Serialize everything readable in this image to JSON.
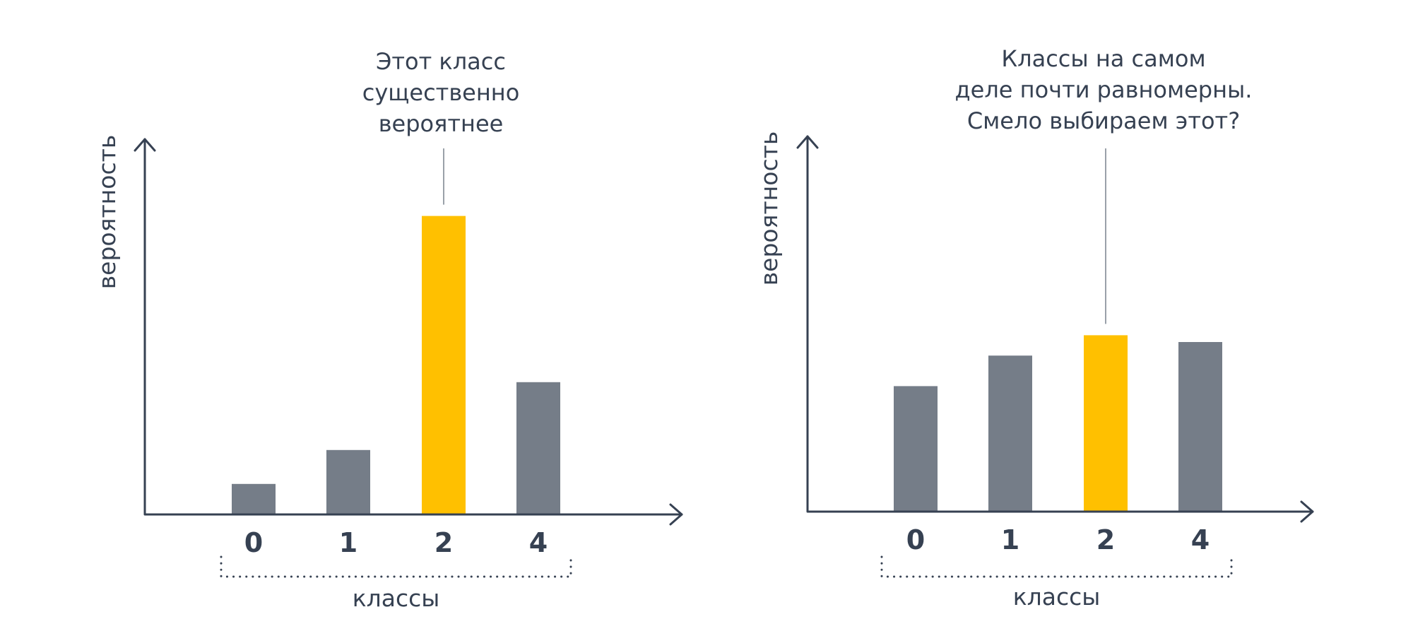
{
  "colors": {
    "bar": "#757d88",
    "highlight": "#ffc000",
    "axis": "#364152",
    "annotation_line": "#9aa1a9"
  },
  "chart_data": [
    {
      "type": "bar",
      "categories": [
        "0",
        "1",
        "2",
        "4"
      ],
      "values": [
        0.09,
        0.19,
        0.88,
        0.39
      ],
      "highlight_index": 2,
      "xlabel": "классы",
      "ylabel": "вероятность",
      "ylim": [
        0,
        1
      ],
      "annotation": {
        "target_index": 2,
        "lines": [
          "Этот класс",
          "существенно",
          "вероятнее"
        ]
      },
      "grid": false
    },
    {
      "type": "bar",
      "categories": [
        "0",
        "1",
        "2",
        "4"
      ],
      "values": [
        0.37,
        0.46,
        0.52,
        0.5
      ],
      "highlight_index": 2,
      "xlabel": "классы",
      "ylabel": "вероятность",
      "ylim": [
        0,
        1
      ],
      "annotation": {
        "target_index": 2,
        "lines": [
          "Классы на самом",
          "деле почти равномерны.",
          "Смело выбираем этот?"
        ]
      },
      "grid": false
    }
  ]
}
